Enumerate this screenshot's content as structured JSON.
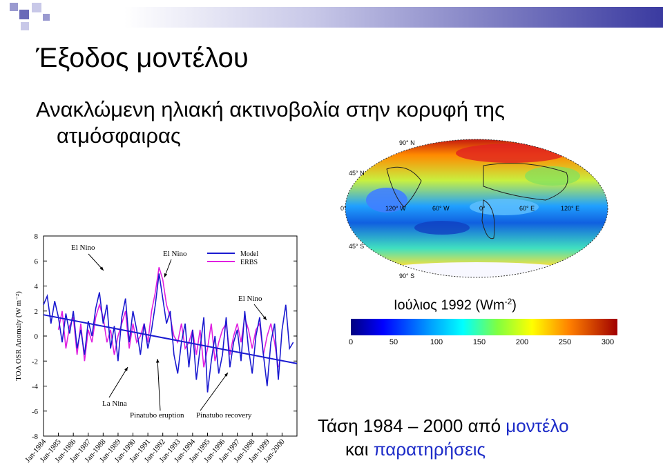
{
  "slide": {
    "title": "Έξοδος μοντέλου",
    "subtitle_line1": "Ανακλώμενη ηλιακή ακτινοβολία στην κορυφή της",
    "subtitle_line2": "ατμόσφαιρας",
    "trend_line1_a": "Τάση 1984 – 2000 από ",
    "trend_line1_b": "μοντέλο",
    "trend_line2_a": "και ",
    "trend_line2_b": "παρατηρήσεις"
  },
  "colors": {
    "model": "#1a1ad0",
    "erbs": "#e020e0",
    "trend": "#1a1ad0",
    "accent": "#1d2cc8",
    "banner": "#4a4ab0"
  },
  "map": {
    "lat_labels": [
      "90° N",
      "45° N",
      "0°",
      "45° S",
      "90° S"
    ],
    "lon_labels": [
      "120° W",
      "60° W",
      "0°",
      "60° E",
      "120° E"
    ],
    "caption_main": "Ιούλιος 1992 (Wm",
    "caption_sup": "-2",
    "caption_end": ")",
    "colorbar_ticks": [
      "0",
      "50",
      "100",
      "150",
      "200",
      "250",
      "300"
    ],
    "colorbar_range": [
      0,
      300
    ]
  },
  "chart_data": {
    "type": "line",
    "ylabel": "TOA OSR Anomaly (W m⁻²)",
    "ylim": [
      -8,
      8
    ],
    "yticks": [
      "8",
      "6",
      "4",
      "2",
      "0",
      "-2",
      "-4",
      "-6",
      "-8"
    ],
    "x_tick_labels": [
      "Jan-1984",
      "Jan-1985",
      "Jan-1986",
      "Jan-1987",
      "Jan-1988",
      "Jan-1989",
      "Jan-1990",
      "Jan-1991",
      "Jan-1992",
      "Jan-1993",
      "Jan-1994",
      "Jan-1995",
      "Jan-1996",
      "Jan-1997",
      "Jan-1998",
      "Jan-1999",
      "Jan-2000"
    ],
    "legend": {
      "position": "top-right",
      "entries": [
        "Model",
        "ERBS"
      ]
    },
    "annotations": [
      "El Nino",
      "El Nino",
      "El Nino",
      "La Nina",
      "Pinatubo eruption",
      "Pinatubo recovery"
    ],
    "x_range": [
      1984.0,
      2001.0
    ],
    "series": [
      {
        "name": "Model",
        "x": [
          1984.0,
          1984.25,
          1984.5,
          1984.75,
          1985.0,
          1985.25,
          1985.5,
          1985.75,
          1986.0,
          1986.25,
          1986.5,
          1986.75,
          1987.0,
          1987.25,
          1987.5,
          1987.75,
          1988.0,
          1988.25,
          1988.5,
          1988.75,
          1989.0,
          1989.25,
          1989.5,
          1989.75,
          1990.0,
          1990.25,
          1990.5,
          1990.75,
          1991.0,
          1991.25,
          1991.5,
          1991.75,
          1992.0,
          1992.25,
          1992.5,
          1992.75,
          1993.0,
          1993.25,
          1993.5,
          1993.75,
          1994.0,
          1994.25,
          1994.5,
          1994.75,
          1995.0,
          1995.25,
          1995.5,
          1995.75,
          1996.0,
          1996.25,
          1996.5,
          1996.75,
          1997.0,
          1997.25,
          1997.5,
          1997.75,
          1998.0,
          1998.25,
          1998.5,
          1998.75,
          1999.0,
          1999.25,
          1999.5,
          1999.75,
          2000.0,
          2000.25,
          2000.5,
          2000.75
        ],
        "values": [
          2.5,
          3.2,
          1.0,
          2.8,
          1.5,
          -0.5,
          1.8,
          0.2,
          2.0,
          -1.0,
          0.5,
          -1.5,
          1.2,
          0.0,
          2.2,
          3.5,
          1.0,
          2.5,
          -1.0,
          0.8,
          -2.0,
          1.5,
          3.0,
          -0.5,
          2.0,
          0.5,
          -1.5,
          1.0,
          -1.0,
          0.5,
          2.5,
          5.0,
          3.0,
          1.0,
          2.0,
          -1.5,
          -3.0,
          -0.5,
          1.0,
          -2.5,
          0.5,
          -3.5,
          -1.0,
          1.5,
          -4.5,
          -2.0,
          0.0,
          -3.0,
          -1.5,
          1.5,
          -2.5,
          -0.5,
          0.5,
          -2.0,
          2.0,
          -1.0,
          -3.0,
          0.0,
          1.5,
          -1.5,
          -4.0,
          -0.5,
          1.0,
          -3.5,
          0.5,
          2.5,
          -1.0,
          -0.5
        ]
      },
      {
        "name": "ERBS",
        "x": [
          1985.0,
          1985.25,
          1985.5,
          1985.75,
          1986.0,
          1986.25,
          1986.5,
          1986.75,
          1987.0,
          1987.25,
          1987.5,
          1987.75,
          1988.0,
          1988.25,
          1988.5,
          1988.75,
          1989.0,
          1989.25,
          1989.5,
          1989.75,
          1990.0,
          1990.25,
          1990.5,
          1990.75,
          1991.0,
          1991.25,
          1991.5,
          1991.75,
          1992.0,
          1992.25,
          1992.5,
          1992.75,
          1993.0,
          1993.25,
          1993.5,
          1993.75,
          1994.0,
          1994.25,
          1994.5,
          1994.75,
          1995.0,
          1995.25,
          1995.5,
          1995.75,
          1996.0,
          1996.25,
          1996.5,
          1996.75,
          1997.0,
          1997.25,
          1997.5,
          1997.75,
          1998.0,
          1998.25,
          1998.5,
          1998.75,
          1999.0,
          1999.25,
          1999.5,
          1999.75
        ],
        "values": [
          0.5,
          2.0,
          -1.0,
          0.8,
          1.5,
          -1.5,
          1.0,
          -2.0,
          0.5,
          -0.5,
          1.5,
          2.5,
          1.5,
          -0.5,
          0.5,
          -1.5,
          0.0,
          1.0,
          2.0,
          -1.0,
          1.0,
          -0.5,
          0.0,
          1.0,
          -0.5,
          2.0,
          3.5,
          5.5,
          4.5,
          2.5,
          1.5,
          0.0,
          -0.5,
          1.0,
          -1.0,
          -0.5,
          0.5,
          -1.5,
          0.5,
          -2.5,
          -1.0,
          1.0,
          -2.0,
          -0.5,
          0.5,
          1.0,
          -1.5,
          0.0,
          1.0,
          -0.5,
          1.5,
          0.5,
          -1.0,
          0.5,
          1.0,
          -1.5,
          0.0,
          1.0,
          -0.5,
          -2.5
        ]
      },
      {
        "name": "",
        "role": "trend",
        "x": [
          1984.0,
          2001.0
        ],
        "values": [
          1.7,
          -2.2
        ]
      }
    ]
  }
}
